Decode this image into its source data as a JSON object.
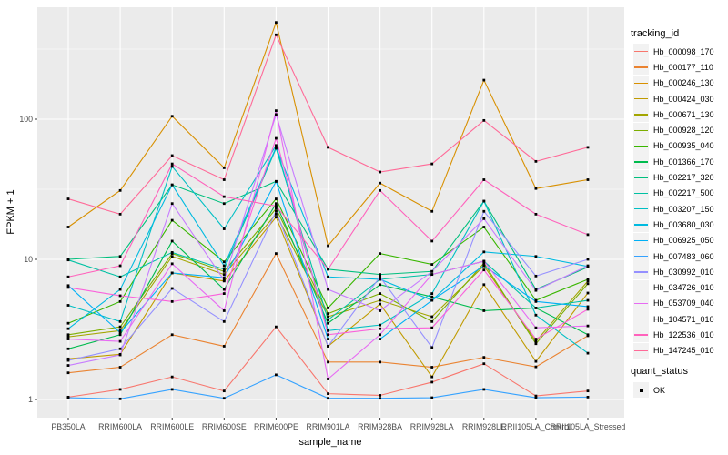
{
  "figure": {
    "y_axis_title": "FPKM + 1",
    "x_axis_title": "sample_name",
    "legend1_title": "tracking_id",
    "legend2_title": "quant_status",
    "quant_ok_label": "OK"
  },
  "colors": {
    "panel_bg": "#EBEBEB",
    "grid": "#FFFFFF",
    "tick_text": "#4D4D4D",
    "tick_mark": "#333333",
    "axis_title": "#000000",
    "legend_key_bg": "#F2F2F2",
    "point": "#000000"
  },
  "chart_data": {
    "type": "line",
    "title": "",
    "xlabel": "sample_name",
    "ylabel": "FPKM + 1",
    "y_scale": "log10",
    "ylim": [
      0.75,
      630
    ],
    "y_major_ticks": [
      1,
      10,
      100
    ],
    "y_tick_labels": [
      "1",
      "10",
      "100"
    ],
    "y_minor_ticks": [
      3.162,
      31.62,
      316.2
    ],
    "grid": true,
    "legend_position": "right",
    "point_marker": "black-square",
    "x_categories": [
      "PB350LA",
      "RRIM600LA",
      "RRIM600LE",
      "RRIM600SE",
      "RRIM600PE",
      "RRIM901LA",
      "RRIM928BA",
      "RRIM928LA",
      "RRIM928LE",
      "RRII105LA_Control",
      "RRII105LA_Stressed"
    ],
    "series": [
      {
        "name": "Hb_000098_170",
        "color": "#F8766D",
        "values": [
          1.04,
          1.18,
          1.45,
          1.15,
          3.3,
          1.1,
          1.07,
          1.33,
          1.8,
          1.06,
          1.15
        ]
      },
      {
        "name": "Hb_000177_110",
        "color": "#EA8331",
        "values": [
          1.55,
          1.7,
          2.9,
          2.4,
          11,
          1.85,
          1.85,
          1.7,
          2.0,
          1.71,
          2.85
        ]
      },
      {
        "name": "Hb_000246_130",
        "color": "#D89000",
        "values": [
          17,
          31,
          105,
          45,
          490,
          12.5,
          35,
          22,
          190,
          32,
          37
        ]
      },
      {
        "name": "Hb_000424_030",
        "color": "#C09B00",
        "values": [
          1.95,
          2.1,
          8.0,
          7.0,
          20,
          2.4,
          4.8,
          1.45,
          6.6,
          1.87,
          5.75
        ]
      },
      {
        "name": "Hb_000671_130",
        "color": "#A3A500",
        "values": [
          2.8,
          3.1,
          10.5,
          7.8,
          21,
          3.9,
          5.1,
          3.9,
          9.0,
          2.6,
          7.0
        ]
      },
      {
        "name": "Hb_000928_120",
        "color": "#7CAE00",
        "values": [
          2.9,
          3.3,
          11.0,
          8.2,
          23,
          4.1,
          5.7,
          3.6,
          9.4,
          2.5,
          6.7
        ]
      },
      {
        "name": "Hb_000935_040",
        "color": "#39B600",
        "values": [
          3.5,
          5.0,
          19.0,
          9.6,
          27,
          4.5,
          11.0,
          9.2,
          17.0,
          5.1,
          7.2
        ]
      },
      {
        "name": "Hb_001366_170",
        "color": "#00BB4E",
        "values": [
          2.3,
          2.9,
          13.5,
          6.1,
          25,
          3.5,
          6.6,
          5.4,
          4.3,
          4.5,
          2.9
        ]
      },
      {
        "name": "Hb_002217_320",
        "color": "#00BF7D",
        "values": [
          10.0,
          10.5,
          34.0,
          25.0,
          36,
          8.5,
          7.8,
          8.2,
          26.0,
          6.1,
          8.8
        ]
      },
      {
        "name": "Hb_002217_500",
        "color": "#00C1A3",
        "values": [
          9.9,
          7.5,
          11.2,
          8.5,
          62,
          3.7,
          7.2,
          7.8,
          9.7,
          4.5,
          5.1
        ]
      },
      {
        "name": "Hb_003207_150",
        "color": "#00BFC4",
        "values": [
          4.7,
          3.6,
          46.0,
          16.5,
          65,
          3.1,
          3.4,
          5.7,
          26.0,
          4.0,
          2.14
        ]
      },
      {
        "name": "Hb_003680_030",
        "color": "#00BAE0",
        "values": [
          3.2,
          6.1,
          34.0,
          9.0,
          63,
          7.5,
          7.2,
          5.1,
          11.3,
          10.5,
          8.9
        ]
      },
      {
        "name": "Hb_006925_050",
        "color": "#00B0F6",
        "values": [
          6.5,
          3.0,
          8.0,
          7.4,
          36,
          2.7,
          2.7,
          5.1,
          9.0,
          5.0,
          4.6
        ]
      },
      {
        "name": "Hb_007483_060",
        "color": "#35A2FF",
        "values": [
          1.03,
          1.01,
          1.18,
          1.02,
          1.5,
          1.02,
          1.02,
          1.03,
          1.18,
          1.03,
          1.04
        ]
      },
      {
        "name": "Hb_030992_010",
        "color": "#9590FF",
        "values": [
          1.9,
          2.3,
          6.2,
          3.6,
          22,
          2.4,
          7.5,
          2.35,
          22.0,
          7.6,
          10.0
        ]
      },
      {
        "name": "Hb_034726_010",
        "color": "#C77CFF",
        "values": [
          1.75,
          2.08,
          25.0,
          7.1,
          108,
          6.1,
          4.3,
          8.2,
          19.5,
          6.0,
          9.0
        ]
      },
      {
        "name": "Hb_053709_040",
        "color": "#E76BF3",
        "values": [
          2.7,
          2.6,
          9.3,
          4.3,
          115,
          1.4,
          2.9,
          7.8,
          9.7,
          3.25,
          3.35
        ]
      },
      {
        "name": "Hb_104571_010",
        "color": "#FA62DB",
        "values": [
          6.3,
          5.5,
          5.0,
          5.7,
          73,
          2.9,
          3.2,
          3.25,
          8.4,
          2.7,
          4.4
        ]
      },
      {
        "name": "Hb_122536_010",
        "color": "#FF62BC",
        "values": [
          7.5,
          9.0,
          48.0,
          28.0,
          24,
          8.5,
          31.0,
          13.5,
          37.0,
          21.0,
          15.0
        ]
      },
      {
        "name": "Hb_147245_010",
        "color": "#FF6A98",
        "values": [
          27,
          21,
          55,
          37,
          400,
          63,
          42,
          48,
          98,
          50,
          63
        ]
      }
    ],
    "quant_status_legend": {
      "label": "OK",
      "marker": "black-square"
    }
  }
}
